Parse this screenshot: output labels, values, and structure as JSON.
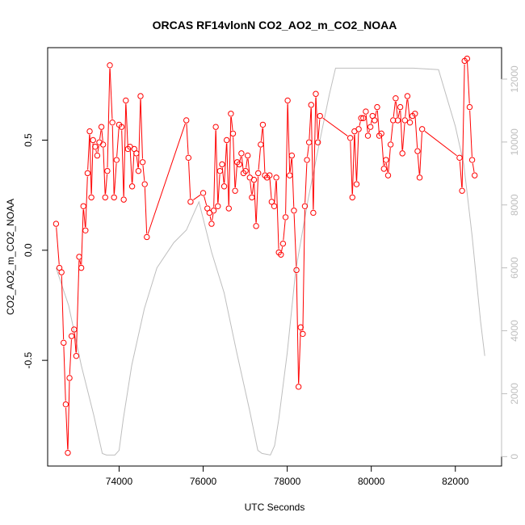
{
  "chart_data": {
    "type": "line",
    "title": "ORCAS RF14vlonN CO2_AO2_m_CO2_NOAA",
    "xlabel": "UTC Seconds",
    "ylabel": "CO2_AO2_m_CO2_NOAA",
    "xlim": [
      72300,
      83100
    ],
    "ylim": [
      -0.98,
      0.92
    ],
    "x_ticks": [
      74000,
      76000,
      78000,
      80000,
      82000
    ],
    "y_ticks": [
      -0.5,
      0.0,
      0.5
    ],
    "y2lim": [
      -300,
      13000
    ],
    "y2_ticks": [
      0,
      2000,
      4000,
      6000,
      8000,
      10000,
      12000
    ],
    "grid": false,
    "series": [
      {
        "style": "line+markers",
        "color": "#ff0000",
        "points": [
          [
            72500,
            0.12
          ],
          [
            72580,
            -0.08
          ],
          [
            72630,
            -0.1
          ],
          [
            72680,
            -0.42
          ],
          [
            72730,
            -0.7
          ],
          [
            72780,
            -0.92
          ],
          [
            72820,
            -0.58
          ],
          [
            72870,
            -0.39
          ],
          [
            72930,
            -0.36
          ],
          [
            72980,
            -0.48
          ],
          [
            73050,
            -0.03
          ],
          [
            73100,
            -0.08
          ],
          [
            73150,
            0.2
          ],
          [
            73200,
            0.09
          ],
          [
            73250,
            0.35
          ],
          [
            73300,
            0.54
          ],
          [
            73340,
            0.24
          ],
          [
            73380,
            0.5
          ],
          [
            73430,
            0.47
          ],
          [
            73480,
            0.43
          ],
          [
            73530,
            0.49
          ],
          [
            73580,
            0.56
          ],
          [
            73620,
            0.48
          ],
          [
            73670,
            0.24
          ],
          [
            73720,
            0.36
          ],
          [
            73780,
            0.84
          ],
          [
            73840,
            0.58
          ],
          [
            73880,
            0.24
          ],
          [
            73940,
            0.41
          ],
          [
            74000,
            0.57
          ],
          [
            74060,
            0.56
          ],
          [
            74110,
            0.23
          ],
          [
            74160,
            0.68
          ],
          [
            74210,
            0.46
          ],
          [
            74260,
            0.47
          ],
          [
            74310,
            0.29
          ],
          [
            74360,
            0.46
          ],
          [
            74410,
            0.44
          ],
          [
            74460,
            0.36
          ],
          [
            74510,
            0.7
          ],
          [
            74560,
            0.4
          ],
          [
            74610,
            0.3
          ],
          [
            74660,
            0.06
          ],
          [
            75600,
            0.59
          ],
          [
            75650,
            0.42
          ],
          [
            75700,
            0.22
          ],
          [
            76000,
            0.26
          ],
          [
            76100,
            0.19
          ],
          [
            76150,
            0.17
          ],
          [
            76200,
            0.12
          ],
          [
            76250,
            0.18
          ],
          [
            76300,
            0.56
          ],
          [
            76350,
            0.2
          ],
          [
            76400,
            0.36
          ],
          [
            76450,
            0.39
          ],
          [
            76500,
            0.29
          ],
          [
            76560,
            0.5
          ],
          [
            76610,
            0.19
          ],
          [
            76660,
            0.62
          ],
          [
            76710,
            0.53
          ],
          [
            76760,
            0.27
          ],
          [
            76810,
            0.4
          ],
          [
            76860,
            0.39
          ],
          [
            76910,
            0.44
          ],
          [
            76960,
            0.35
          ],
          [
            77010,
            0.36
          ],
          [
            77060,
            0.43
          ],
          [
            77110,
            0.33
          ],
          [
            77160,
            0.24
          ],
          [
            77210,
            0.32
          ],
          [
            77260,
            0.11
          ],
          [
            77310,
            0.35
          ],
          [
            77370,
            0.48
          ],
          [
            77420,
            0.57
          ],
          [
            77470,
            0.34
          ],
          [
            77520,
            0.33
          ],
          [
            77580,
            0.34
          ],
          [
            77630,
            0.22
          ],
          [
            77690,
            0.2
          ],
          [
            77740,
            0.33
          ],
          [
            77800,
            -0.01
          ],
          [
            77850,
            -0.02
          ],
          [
            77900,
            0.03
          ],
          [
            77960,
            0.15
          ],
          [
            78010,
            0.68
          ],
          [
            78060,
            0.34
          ],
          [
            78110,
            0.43
          ],
          [
            78160,
            0.18
          ],
          [
            78220,
            -0.09
          ],
          [
            78270,
            -0.62
          ],
          [
            78320,
            -0.35
          ],
          [
            78370,
            -0.38
          ],
          [
            78420,
            0.2
          ],
          [
            78470,
            0.41
          ],
          [
            78520,
            0.49
          ],
          [
            78570,
            0.66
          ],
          [
            78620,
            0.17
          ],
          [
            78680,
            0.71
          ],
          [
            78730,
            0.49
          ],
          [
            78780,
            0.61
          ],
          [
            79500,
            0.51
          ],
          [
            79550,
            0.24
          ],
          [
            79600,
            0.54
          ],
          [
            79650,
            0.3
          ],
          [
            79700,
            0.55
          ],
          [
            79760,
            0.6
          ],
          [
            79810,
            0.6
          ],
          [
            79870,
            0.63
          ],
          [
            79920,
            0.52
          ],
          [
            79980,
            0.56
          ],
          [
            80030,
            0.61
          ],
          [
            80080,
            0.59
          ],
          [
            80140,
            0.65
          ],
          [
            80190,
            0.52
          ],
          [
            80240,
            0.53
          ],
          [
            80300,
            0.37
          ],
          [
            80350,
            0.41
          ],
          [
            80400,
            0.34
          ],
          [
            80460,
            0.48
          ],
          [
            80520,
            0.59
          ],
          [
            80580,
            0.69
          ],
          [
            80630,
            0.59
          ],
          [
            80690,
            0.65
          ],
          [
            80740,
            0.44
          ],
          [
            80800,
            0.59
          ],
          [
            80860,
            0.7
          ],
          [
            80920,
            0.58
          ],
          [
            80980,
            0.61
          ],
          [
            81040,
            0.62
          ],
          [
            81100,
            0.45
          ],
          [
            81150,
            0.33
          ],
          [
            81210,
            0.55
          ],
          [
            82100,
            0.42
          ],
          [
            82160,
            0.27
          ],
          [
            82220,
            0.86
          ],
          [
            82280,
            0.87
          ],
          [
            82340,
            0.65
          ],
          [
            82400,
            0.41
          ],
          [
            82460,
            0.34
          ]
        ]
      },
      {
        "style": "line",
        "axis": "right",
        "color": "#bebebe",
        "points": [
          [
            72500,
            6000
          ],
          [
            72800,
            4800
          ],
          [
            73100,
            2900
          ],
          [
            73400,
            1300
          ],
          [
            73600,
            100
          ],
          [
            73700,
            50
          ],
          [
            73900,
            50
          ],
          [
            74000,
            200
          ],
          [
            74100,
            1200
          ],
          [
            74300,
            2900
          ],
          [
            74600,
            4700
          ],
          [
            74900,
            6000
          ],
          [
            75300,
            6800
          ],
          [
            75600,
            7200
          ],
          [
            75900,
            8100
          ],
          [
            76200,
            6500
          ],
          [
            76500,
            5200
          ],
          [
            76800,
            3300
          ],
          [
            77100,
            1500
          ],
          [
            77300,
            200
          ],
          [
            77400,
            100
          ],
          [
            77600,
            50
          ],
          [
            77700,
            350
          ],
          [
            77800,
            1200
          ],
          [
            78000,
            3300
          ],
          [
            78200,
            5900
          ],
          [
            78500,
            8200
          ],
          [
            78800,
            10200
          ],
          [
            79000,
            11500
          ],
          [
            79150,
            12350
          ],
          [
            80000,
            12350
          ],
          [
            81000,
            12350
          ],
          [
            81600,
            12300
          ],
          [
            82000,
            10500
          ],
          [
            82200,
            9300
          ],
          [
            82400,
            7000
          ],
          [
            82600,
            4300
          ],
          [
            82700,
            3200
          ]
        ]
      }
    ]
  }
}
